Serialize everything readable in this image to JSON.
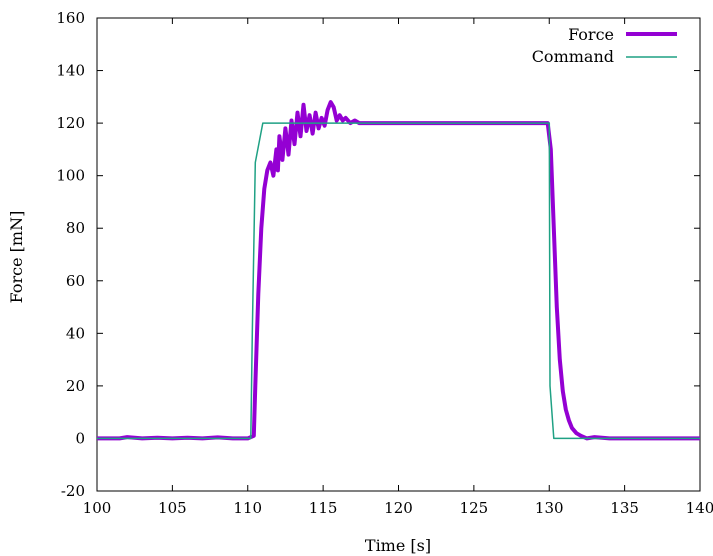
{
  "chart_data": {
    "type": "line",
    "title": "",
    "xlabel": "Time [s]",
    "ylabel": "Force [mN]",
    "xlim": [
      100,
      140
    ],
    "ylim": [
      -20,
      160
    ],
    "xticks": [
      100,
      105,
      110,
      115,
      120,
      125,
      130,
      135,
      140
    ],
    "yticks": [
      -20,
      0,
      20,
      40,
      60,
      80,
      100,
      120,
      140,
      160
    ],
    "grid": false,
    "legend_position": "top-right",
    "series": [
      {
        "name": "Force",
        "color": "#9400d3",
        "x": [
          100,
          101.5,
          102,
          103,
          104,
          105,
          106,
          107,
          108,
          109,
          110,
          110.4,
          110.5,
          110.7,
          110.9,
          111.1,
          111.3,
          111.5,
          111.7,
          111.9,
          112.0,
          112.1,
          112.3,
          112.5,
          112.7,
          112.9,
          113.1,
          113.3,
          113.5,
          113.7,
          113.9,
          114.1,
          114.3,
          114.5,
          114.7,
          114.9,
          115.1,
          115.3,
          115.5,
          115.7,
          115.9,
          116.1,
          116.3,
          116.5,
          116.8,
          117.1,
          117.4,
          118,
          120,
          125,
          129.9,
          130.1,
          130.3,
          130.5,
          130.7,
          130.9,
          131.1,
          131.3,
          131.5,
          131.8,
          132.1,
          132.5,
          133,
          134,
          135,
          136,
          137,
          138,
          139,
          140
        ],
        "y": [
          0,
          0,
          0.5,
          0,
          0.3,
          0,
          0.3,
          0,
          0.4,
          0,
          0,
          1,
          20,
          55,
          80,
          95,
          102,
          105,
          100,
          110,
          102,
          115,
          106,
          118,
          108,
          121,
          112,
          124,
          115,
          127,
          117,
          123,
          116,
          124,
          118,
          122,
          119,
          125,
          128,
          126,
          121,
          123,
          121,
          122,
          120,
          121,
          120,
          120,
          120,
          120,
          120,
          110,
          80,
          50,
          30,
          18,
          11,
          7,
          4,
          2,
          1,
          0,
          0.5,
          0,
          0,
          0,
          0,
          0,
          0,
          0
        ]
      },
      {
        "name": "Command",
        "color": "#1fa184",
        "x": [
          100,
          110.2,
          110.3,
          110.5,
          111,
          117,
          130,
          130.05,
          130.3,
          140
        ],
        "y": [
          0,
          0,
          40,
          105,
          120,
          120,
          120,
          20,
          0,
          0
        ]
      }
    ]
  }
}
